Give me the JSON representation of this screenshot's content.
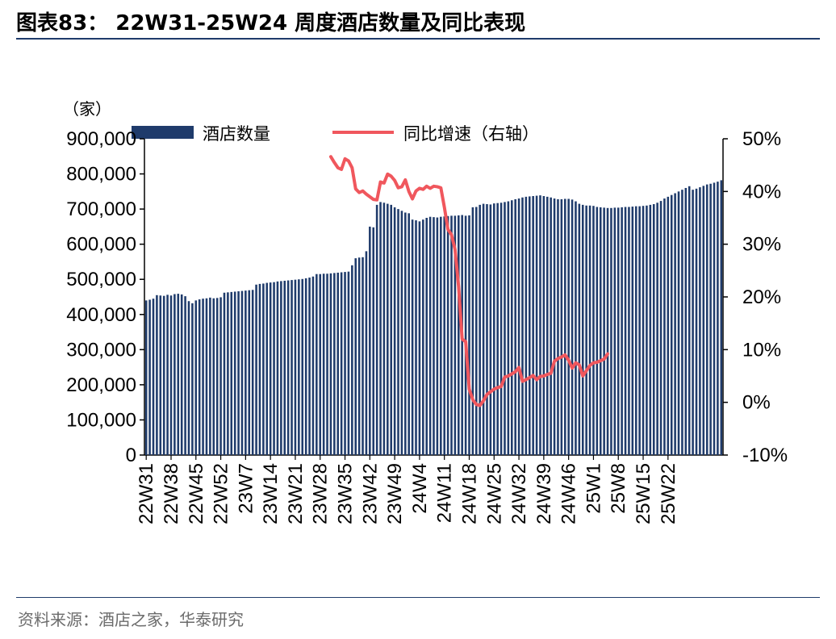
{
  "header": {
    "title": "图表83：  22W31-25W24 周度酒店数量及同比表现"
  },
  "footer": {
    "source": "资料来源：酒店之家，华泰研究"
  },
  "colors": {
    "bars": "#1f3b6b",
    "line": "#f0575d",
    "rule": "#1f3b6b"
  },
  "chart_data": {
    "type": "bar",
    "title": "22W31-25W24 周度酒店数量及同比表现",
    "unit_left": "（家）",
    "legend": [
      "酒店数量",
      "同比增速（右轴）"
    ],
    "legend_position": "top",
    "ylim_left": [
      0,
      900000
    ],
    "ylim_right": [
      -10,
      50
    ],
    "y_ticks_left": [
      "0",
      "100,000",
      "200,000",
      "300,000",
      "400,000",
      "500,000",
      "600,000",
      "700,000",
      "800,000",
      "900,000"
    ],
    "y_ticks_right": [
      "-10%",
      "0%",
      "10%",
      "20%",
      "30%",
      "40%",
      "50%"
    ],
    "x_ticks": [
      "22W31",
      "22W38",
      "22W45",
      "22W52",
      "23W7",
      "23W14",
      "23W21",
      "23W28",
      "23W35",
      "23W42",
      "23W49",
      "24W4",
      "24W11",
      "24W18",
      "24W25",
      "24W32",
      "24W39",
      "24W46",
      "25W1",
      "25W8",
      "25W15",
      "25W22"
    ],
    "series": [
      {
        "name": "酒店数量",
        "type": "bar",
        "axis": "left",
        "values": [
          440000,
          442000,
          445000,
          455000,
          454000,
          453000,
          456000,
          454000,
          458000,
          459000,
          457000,
          452000,
          438000,
          432000,
          440000,
          443000,
          445000,
          446000,
          448000,
          446000,
          447000,
          449000,
          462000,
          463000,
          464000,
          465000,
          466000,
          467000,
          468000,
          469000,
          470000,
          485000,
          487000,
          488000,
          490000,
          491000,
          492000,
          494000,
          495000,
          496000,
          497000,
          498000,
          499000,
          500000,
          501000,
          503000,
          505000,
          508000,
          515000,
          515000,
          516000,
          516000,
          517000,
          518000,
          519000,
          520000,
          521000,
          522000,
          540000,
          560000,
          562000,
          563000,
          580000,
          650000,
          648000,
          712000,
          720000,
          718000,
          715000,
          712000,
          705000,
          700000,
          695000,
          690000,
          688000,
          670000,
          668000,
          665000,
          670000,
          675000,
          678000,
          677000,
          676000,
          678000,
          679000,
          680000,
          681000,
          681000,
          682000,
          683000,
          681000,
          682000,
          705000,
          706000,
          712000,
          715000,
          714000,
          713000,
          716000,
          717000,
          718000,
          720000,
          722000,
          725000,
          728000,
          730000,
          733000,
          735000,
          736000,
          737000,
          738000,
          739000,
          737000,
          735000,
          733000,
          730000,
          728000,
          728000,
          729000,
          729000,
          727000,
          722000,
          715000,
          712000,
          710000,
          710000,
          709000,
          706000,
          705000,
          704000,
          703000,
          703000,
          704000,
          704000,
          705000,
          706000,
          706000,
          707000,
          708000,
          708000,
          709000,
          710000,
          712000,
          714000,
          718000,
          723000,
          730000,
          735000,
          740000,
          745000,
          750000,
          755000,
          760000,
          765000,
          755000,
          758000,
          762000,
          766000,
          770000,
          772000,
          775000,
          778000,
          782000
        ]
      },
      {
        "name": "同比增速（右轴）",
        "type": "line",
        "axis": "right",
        "start_index": 52,
        "values": [
          46.6,
          45.5,
          44.5,
          44.2,
          46.2,
          45.8,
          44.5,
          40.5,
          39.8,
          40.1,
          39.5,
          39.0,
          38.5,
          38.4,
          41.8,
          41.6,
          43.3,
          42.9,
          42.1,
          40.7,
          40.9,
          42.2,
          40.0,
          38.6,
          40.1,
          40.6,
          40.4,
          41.0,
          40.6,
          41.0,
          40.9,
          40.7,
          37.0,
          32.8,
          31.8,
          29.0,
          22.0,
          12.0,
          11.5,
          2.5,
          0.5,
          -0.4,
          -0.6,
          0.3,
          1.5,
          2.0,
          2.5,
          2.8,
          3.0,
          4.8,
          5.0,
          5.4,
          5.8,
          6.6,
          4.0,
          4.3,
          4.7,
          5.1,
          4.3,
          4.9,
          5.0,
          5.3,
          5.5,
          7.8,
          8.3,
          8.6,
          9.0,
          8.0,
          6.5,
          7.5,
          7.1,
          5.0,
          6.0,
          7.0,
          7.5,
          7.6,
          7.9,
          8.2,
          9.2
        ]
      }
    ]
  }
}
